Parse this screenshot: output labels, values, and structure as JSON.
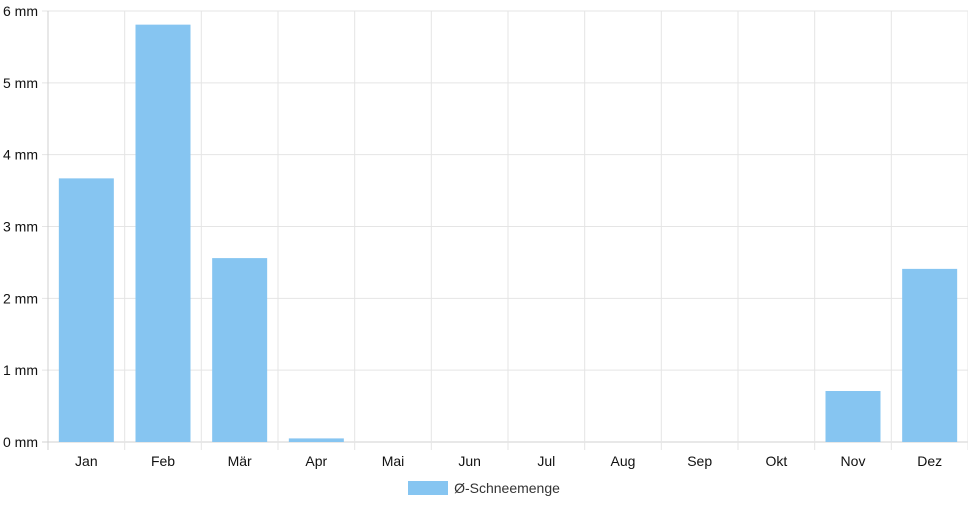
{
  "chart_data": {
    "type": "bar",
    "categories": [
      "Jan",
      "Feb",
      "Mär",
      "Apr",
      "Mai",
      "Jun",
      "Jul",
      "Aug",
      "Sep",
      "Okt",
      "Nov",
      "Dez"
    ],
    "series": [
      {
        "name": "Ø-Schneemenge",
        "values": [
          3.67,
          5.81,
          2.56,
          0.05,
          0,
          0,
          0,
          0,
          0,
          0,
          0.71,
          2.41
        ]
      }
    ],
    "y_ticks": [
      0,
      1,
      2,
      3,
      4,
      5,
      6
    ],
    "y_unit": "mm",
    "ylim": [
      0,
      6
    ],
    "grid": true,
    "legend_position": "bottom",
    "colors": {
      "bar": "#86c5f1",
      "grid": "#e5e5e5",
      "axis": "#d0d0d0"
    }
  }
}
